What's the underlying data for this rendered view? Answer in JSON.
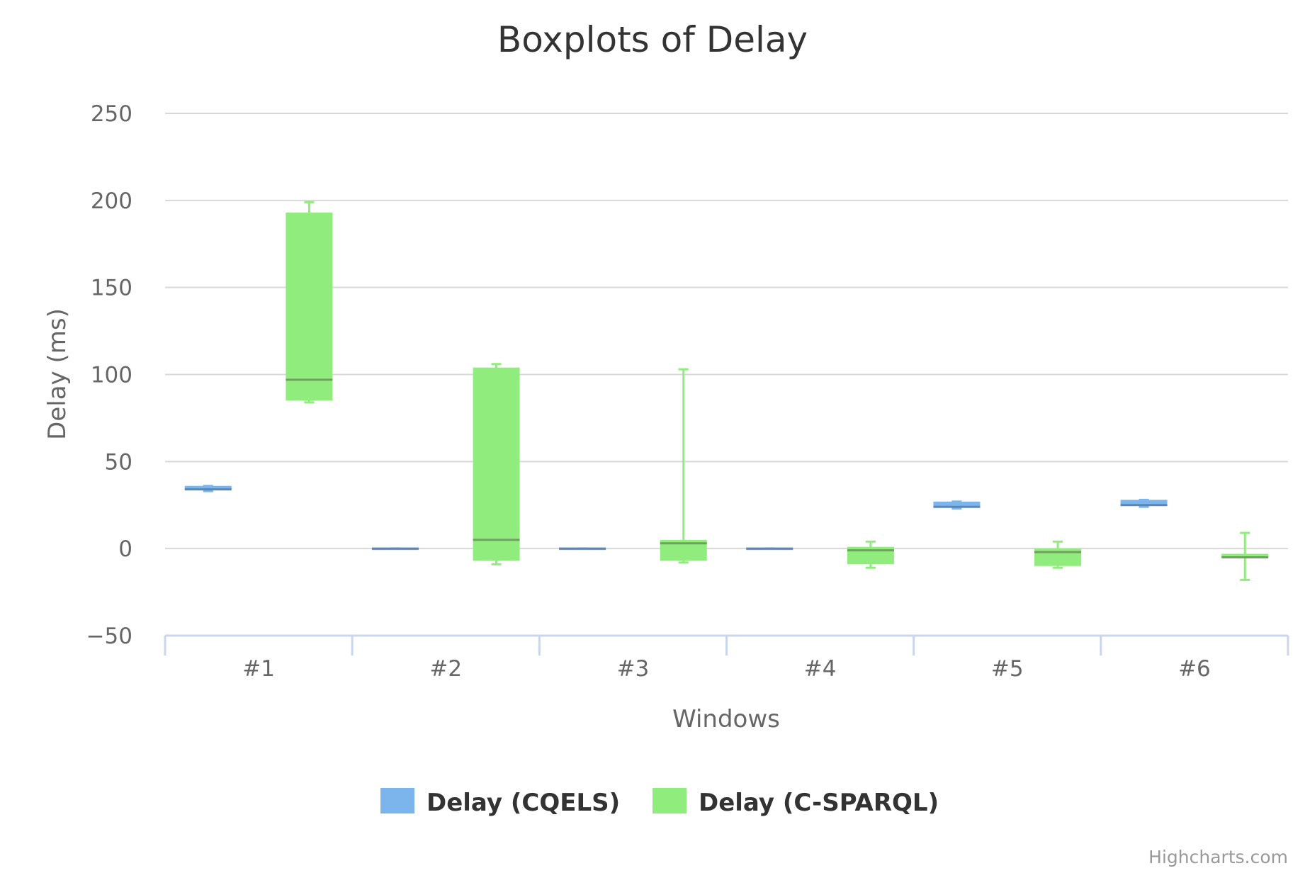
{
  "chart_data": {
    "type": "boxplot",
    "title": "Boxplots of Delay",
    "xlabel": "Windows",
    "ylabel": "Delay (ms)",
    "categories": [
      "#1",
      "#2",
      "#3",
      "#4",
      "#5",
      "#6"
    ],
    "ylim": [
      -50,
      250
    ],
    "yticks": [
      -50,
      0,
      50,
      100,
      150,
      200,
      250
    ],
    "grid": true,
    "legend_position": "bottom-center",
    "series": [
      {
        "name": "Delay (CQELS)",
        "color": "#7cb5ec",
        "boxes": [
          {
            "low": 33,
            "q1": 34,
            "median": 34,
            "q3": 36,
            "high": 36
          },
          {
            "low": 0,
            "q1": 0,
            "median": 0,
            "q3": 0,
            "high": 0
          },
          {
            "low": 0,
            "q1": 0,
            "median": 0,
            "q3": 0,
            "high": 0
          },
          {
            "low": 0,
            "q1": 0,
            "median": 0,
            "q3": 0,
            "high": 0
          },
          {
            "low": 23,
            "q1": 24,
            "median": 24,
            "q3": 27,
            "high": 27
          },
          {
            "low": 24,
            "q1": 25,
            "median": 25,
            "q3": 28,
            "high": 28
          }
        ]
      },
      {
        "name": "Delay (C-SPARQL)",
        "color": "#90ed7d",
        "boxes": [
          {
            "low": 84,
            "q1": 85,
            "median": 97,
            "q3": 193,
            "high": 199
          },
          {
            "low": -9,
            "q1": -7,
            "median": 5,
            "q3": 104,
            "high": 106
          },
          {
            "low": -8,
            "q1": -7,
            "median": 3,
            "q3": 5,
            "high": 103
          },
          {
            "low": -11,
            "q1": -9,
            "median": -1,
            "q3": 1,
            "high": 4
          },
          {
            "low": -11,
            "q1": -10,
            "median": -2,
            "q3": 0,
            "high": 4
          },
          {
            "low": -18,
            "q1": -5,
            "median": -5,
            "q3": -3,
            "high": 9
          }
        ]
      }
    ],
    "credits": "Highcharts.com"
  }
}
